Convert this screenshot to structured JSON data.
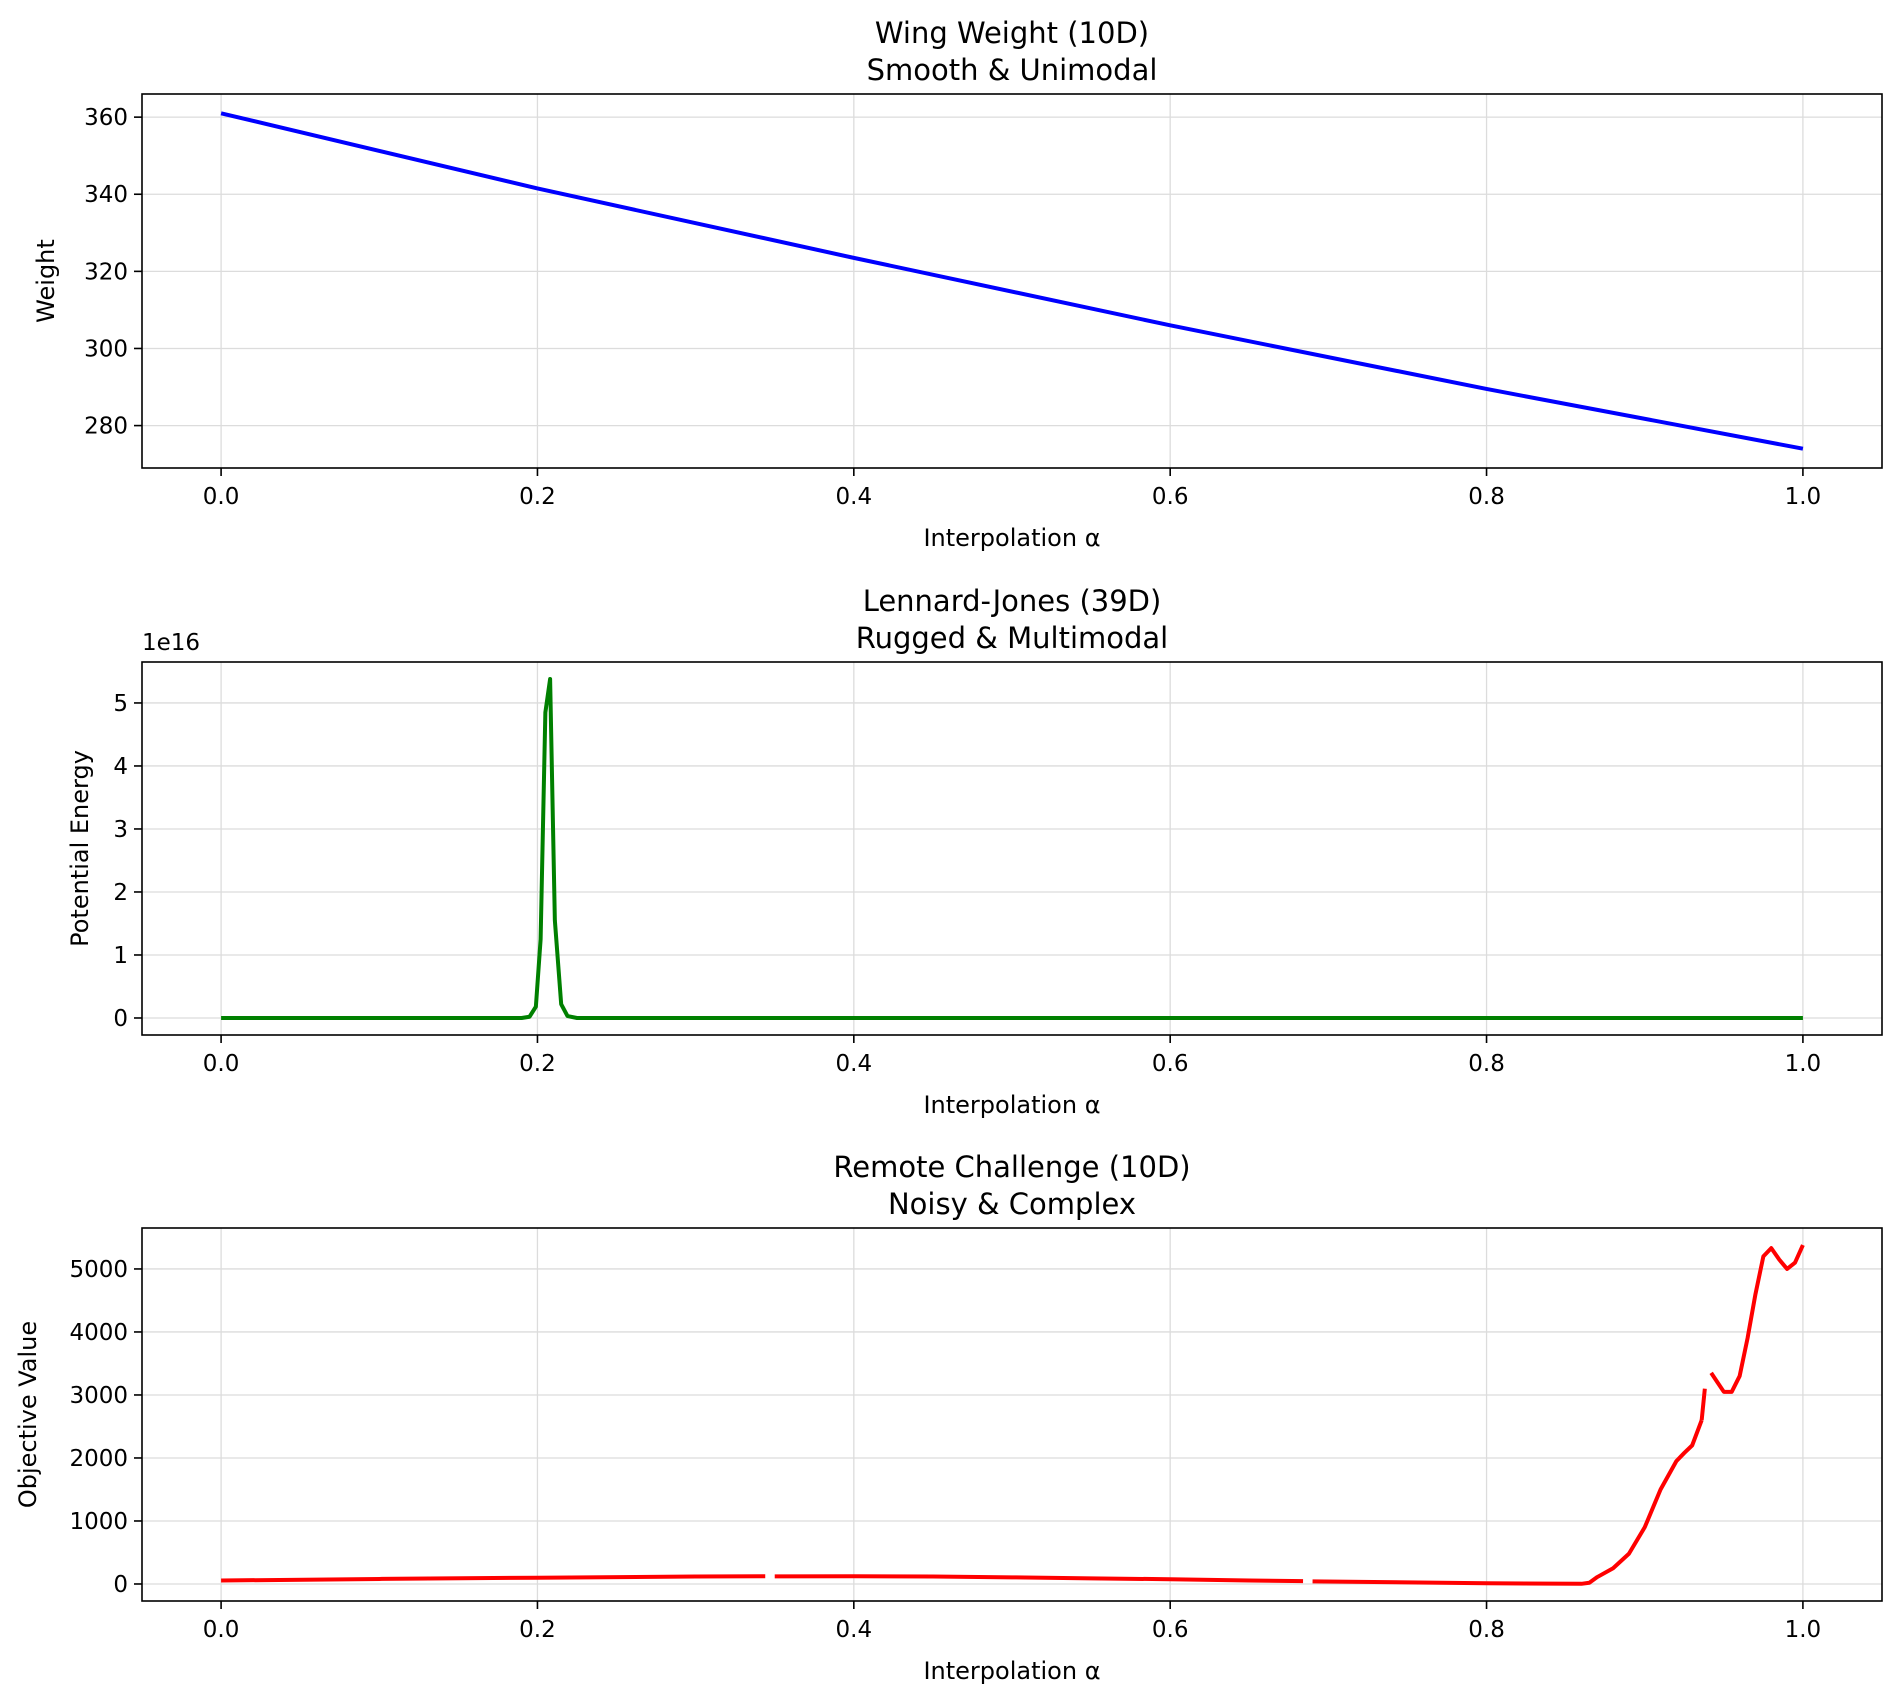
{
  "chart_data": [
    {
      "type": "line",
      "title": "Wing Weight (10D)",
      "subtitle": "Smooth & Unimodal",
      "xlabel": "Interpolation α",
      "ylabel": "Weight",
      "xlim": [
        -0.05,
        1.05
      ],
      "ylim": [
        269,
        366
      ],
      "xticks": [
        0.0,
        0.2,
        0.4,
        0.6,
        0.8,
        1.0
      ],
      "xtick_labels": [
        "0.0",
        "0.2",
        "0.4",
        "0.6",
        "0.8",
        "1.0"
      ],
      "yticks": [
        280,
        300,
        320,
        340,
        360
      ],
      "ytick_labels": [
        "280",
        "300",
        "320",
        "340",
        "360"
      ],
      "offset_label": "",
      "grid": true,
      "series": [
        {
          "color": "#0000ff",
          "segments": [
            {
              "x": [
                0.0,
                0.2,
                0.4,
                0.6,
                0.8,
                1.0
              ],
              "y": [
                361,
                341.5,
                323.5,
                306,
                289.5,
                274
              ]
            }
          ]
        }
      ]
    },
    {
      "type": "line",
      "title": "Lennard-Jones (39D)",
      "subtitle": "Rugged & Multimodal",
      "xlabel": "Interpolation α",
      "ylabel": "Potential Energy",
      "xlim": [
        -0.05,
        1.05
      ],
      "ylim": [
        -0.27,
        5.65
      ],
      "xticks": [
        0.0,
        0.2,
        0.4,
        0.6,
        0.8,
        1.0
      ],
      "xtick_labels": [
        "0.0",
        "0.2",
        "0.4",
        "0.6",
        "0.8",
        "1.0"
      ],
      "yticks": [
        0,
        1,
        2,
        3,
        4,
        5
      ],
      "ytick_labels": [
        "0",
        "1",
        "2",
        "3",
        "4",
        "5"
      ],
      "offset_label": "1e16",
      "grid": true,
      "series": [
        {
          "color": "#008000",
          "segments": [
            {
              "x": [
                0.0,
                0.19,
                0.195,
                0.199,
                0.202,
                0.205,
                0.208,
                0.211,
                0.215,
                0.219,
                0.225,
                0.23,
                1.0
              ],
              "y": [
                0,
                0,
                0.02,
                0.18,
                1.25,
                4.85,
                5.38,
                1.55,
                0.22,
                0.03,
                0,
                0,
                0
              ]
            }
          ]
        }
      ]
    },
    {
      "type": "line",
      "title": "Remote Challenge (10D)",
      "subtitle": "Noisy & Complex",
      "xlabel": "Interpolation α",
      "ylabel": "Objective Value",
      "xlim": [
        -0.05,
        1.05
      ],
      "ylim": [
        -270,
        5650
      ],
      "xticks": [
        0.0,
        0.2,
        0.4,
        0.6,
        0.8,
        1.0
      ],
      "xtick_labels": [
        "0.0",
        "0.2",
        "0.4",
        "0.6",
        "0.8",
        "1.0"
      ],
      "yticks": [
        0,
        1000,
        2000,
        3000,
        4000,
        5000
      ],
      "ytick_labels": [
        "0",
        "1000",
        "2000",
        "3000",
        "4000",
        "5000"
      ],
      "offset_label": "",
      "grid": true,
      "series": [
        {
          "color": "#ff0000",
          "segments": [
            {
              "x": [
                0.0,
                0.1,
                0.2,
                0.3,
                0.344
              ],
              "y": [
                55,
                80,
                100,
                118,
                122
              ]
            },
            {
              "x": [
                0.35,
                0.4,
                0.45,
                0.5,
                0.55,
                0.6,
                0.65,
                0.684
              ],
              "y": [
                120,
                122,
                118,
                105,
                90,
                75,
                55,
                45
              ]
            },
            {
              "x": [
                0.69,
                0.75,
                0.8,
                0.84,
                0.86,
                0.865,
                0.87,
                0.88,
                0.89,
                0.9,
                0.91,
                0.92,
                0.925,
                0.93,
                0.936
              ],
              "y": [
                42,
                25,
                12,
                5,
                3,
                20,
                110,
                250,
                480,
                900,
                1500,
                1950,
                2080,
                2200,
                2600
              ]
            },
            {
              "x": [
                0.936,
                0.938
              ],
              "y": [
                2600,
                3100
              ]
            },
            {
              "x": [
                0.942,
                0.946,
                0.95,
                0.955,
                0.96,
                0.965,
                0.97,
                0.975,
                0.98,
                0.985,
                0.99,
                0.995,
                1.0
              ],
              "y": [
                3350,
                3200,
                3050,
                3050,
                3300,
                3900,
                4600,
                5200,
                5330,
                5150,
                5000,
                5100,
                5380
              ]
            }
          ]
        }
      ]
    }
  ]
}
